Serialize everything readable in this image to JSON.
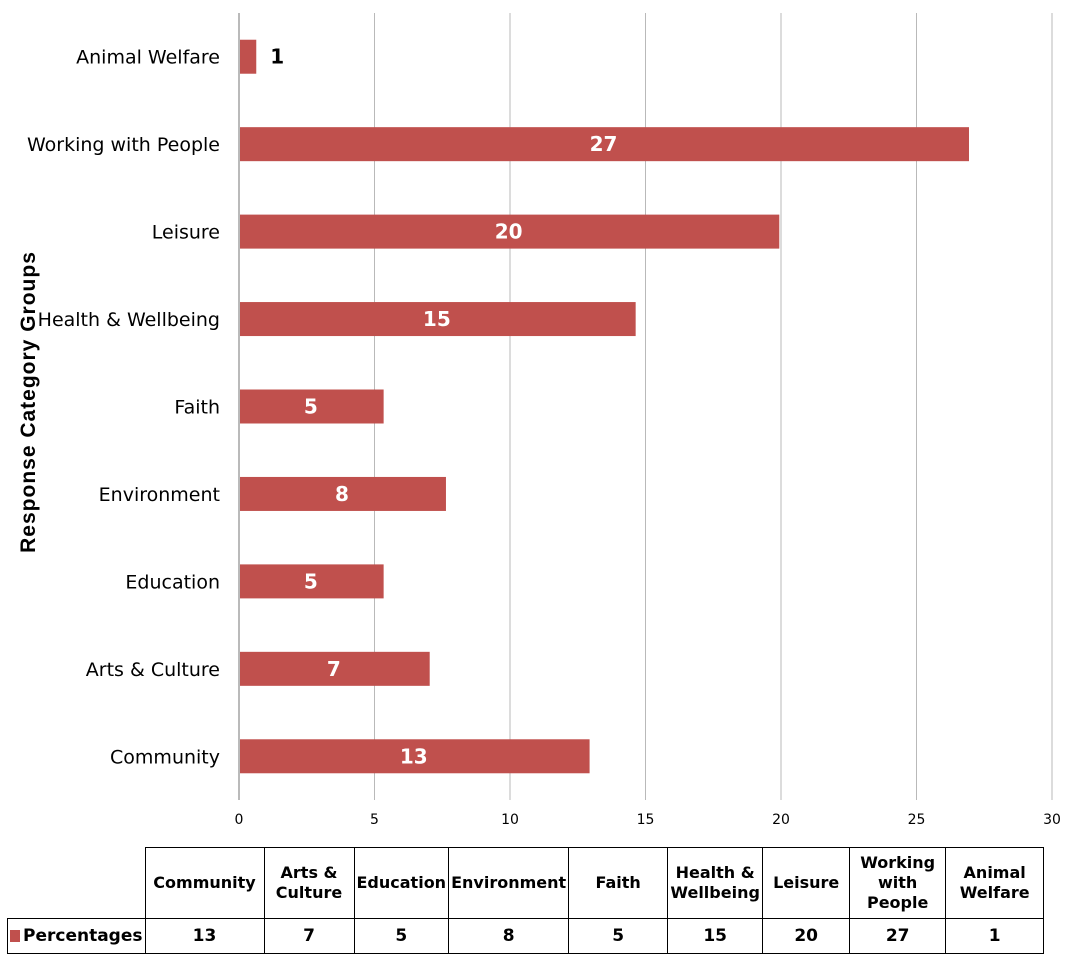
{
  "chart_data": {
    "type": "bar",
    "orientation": "horizontal",
    "categories": [
      "Community",
      "Arts & Culture",
      "Education",
      "Environment",
      "Faith",
      "Health & Wellbeing",
      "Leisure",
      "Working with People",
      "Animal Welfare"
    ],
    "series": [
      {
        "name": "Percentages",
        "values": [
          12.9,
          7.0,
          5.3,
          7.6,
          5.3,
          14.6,
          19.9,
          26.9,
          0.6
        ],
        "labels": [
          "13",
          "7",
          "5",
          "8",
          "5",
          "15",
          "20",
          "27",
          "1"
        ],
        "color": "#c0504d"
      }
    ],
    "xlim": [
      0,
      30
    ],
    "xticks": [
      "0",
      "5",
      "10",
      "15",
      "20",
      "25",
      "30"
    ],
    "xlabel": "",
    "ylabel": "Response Category Groups",
    "title": "",
    "grid": "vertical",
    "data_table": {
      "header": [
        "Community",
        "Arts & Culture",
        "Education",
        "Environment",
        "Faith",
        "Health & Wellbeing",
        "Leisure",
        "Working with People",
        "Animal Welfare"
      ],
      "row_label": "Percentages",
      "values": [
        "13",
        "7",
        "5",
        "8",
        "5",
        "15",
        "20",
        "27",
        "1"
      ]
    }
  },
  "colors": {
    "bar": "#c0504d",
    "bar_label_inside": "#ffffff",
    "bar_label_outside": "#000000",
    "grid": "#b9b9b9"
  }
}
